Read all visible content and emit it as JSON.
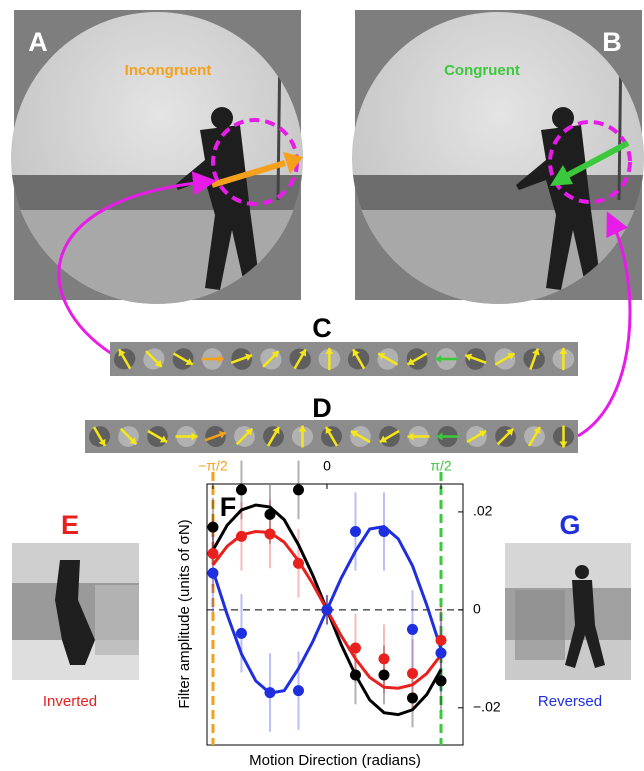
{
  "panels": {
    "A": {
      "label": "A",
      "caption": "Incongruent"
    },
    "B": {
      "label": "B",
      "caption": "Congruent"
    },
    "C": {
      "label": "C"
    },
    "D": {
      "label": "D"
    },
    "E": {
      "label": "E",
      "caption": "Inverted"
    },
    "G": {
      "label": "G",
      "caption": "Reversed"
    }
  },
  "chart_data": {
    "type": "scatter",
    "panel_label": "F",
    "xlabel": "Motion Direction (radians)",
    "ylabel": "Filter amplitude (units of σN)",
    "xlim": [
      -1.653,
      1.874
    ],
    "ylim": [
      -0.0276,
      0.0257
    ],
    "xticks": [
      {
        "value": -1.5708,
        "label": "−π/2"
      },
      0,
      {
        "value": 1.5708,
        "label": "π/2"
      }
    ],
    "xtick_colors": [
      "#f5a01a",
      "#000000",
      "#3cc83c"
    ],
    "yticks": [
      {
        "value": 0.02,
        "label": ".02"
      },
      0,
      {
        "value": -0.02,
        "label": "−.02"
      }
    ],
    "hline": 0,
    "vlines": [
      {
        "value": -1.5708,
        "color": "#f5a01a"
      },
      {
        "value": 1.5708,
        "color": "#3cc83c"
      }
    ],
    "x": [
      -1.5708,
      -1.1781,
      -0.7854,
      -0.3927,
      0,
      0.3927,
      0.7854,
      1.1781,
      1.5708
    ],
    "fit_x": [
      -1.5708,
      -1.3744,
      -1.1781,
      -0.9817,
      -0.7854,
      -0.589,
      -0.3927,
      -0.1963,
      0,
      0.1963,
      0.3927,
      0.589,
      0.7854,
      0.9817,
      1.1781,
      1.3744,
      1.5708
    ],
    "series": [
      {
        "color": "#000000",
        "values": [
          0.0169,
          0.0245,
          0.0195,
          0.0245,
          0,
          -0.0133,
          -0.0133,
          -0.018,
          -0.0145
        ],
        "errors": [
          0.006,
          0.006,
          0.006,
          0.006,
          0.003,
          0.006,
          0.006,
          0.006,
          0.006
        ],
        "fit": [
          0.0122,
          0.0173,
          0.0204,
          0.0214,
          0.021,
          0.0184,
          0.0133,
          0.0071,
          0,
          -0.0071,
          -0.0133,
          -0.0184,
          -0.021,
          -0.0214,
          -0.0204,
          -0.0173,
          -0.0122
        ]
      },
      {
        "color": "#e8211f",
        "values": [
          0.0115,
          0.015,
          0.0155,
          0.0095,
          0,
          -0.0078,
          -0.01,
          -0.013,
          -0.0062
        ],
        "errors": [
          0.007,
          0.007,
          0.007,
          0.007,
          0.003,
          0.007,
          0.007,
          0.007,
          0.007
        ],
        "fit": [
          0.0092,
          0.013,
          0.0153,
          0.016,
          0.0158,
          0.0138,
          0.01,
          0.0053,
          0,
          -0.0053,
          -0.01,
          -0.0138,
          -0.0158,
          -0.016,
          -0.0153,
          -0.013,
          -0.0092
        ]
      },
      {
        "color": "#1f2fe0",
        "values": [
          0.0075,
          -0.0048,
          -0.0169,
          -0.0165,
          0,
          0.016,
          0.016,
          -0.004,
          -0.0088
        ],
        "errors": [
          0.008,
          0.008,
          0.008,
          0.008,
          0.003,
          0.008,
          0.008,
          0.008,
          0.008
        ],
        "fit": [
          0.008,
          -0.001,
          -0.009,
          -0.0145,
          -0.017,
          -0.0165,
          -0.012,
          -0.0065,
          0,
          0.0065,
          0.012,
          0.0165,
          0.017,
          0.0145,
          0.009,
          0.001,
          -0.008
        ]
      }
    ]
  }
}
